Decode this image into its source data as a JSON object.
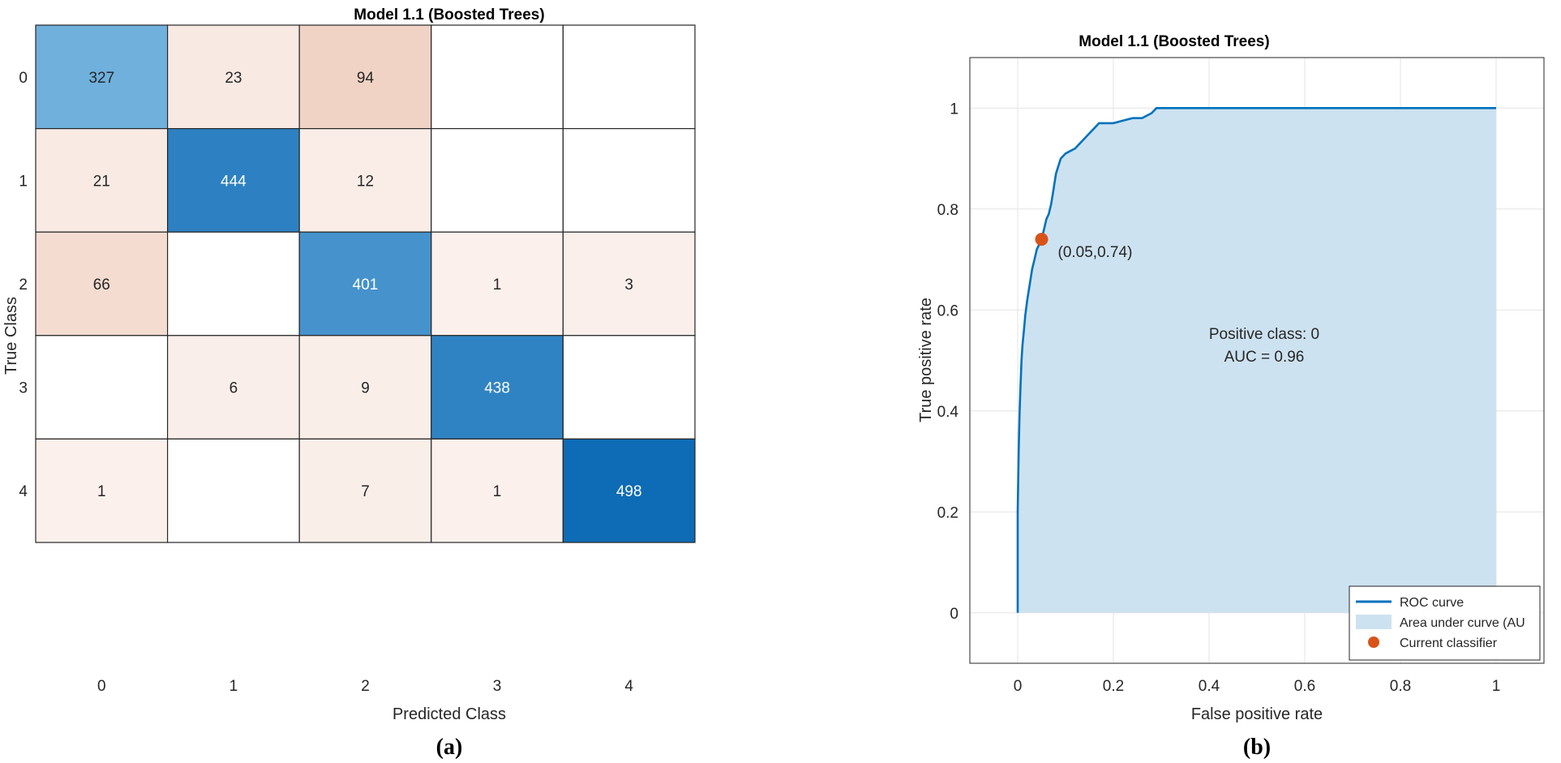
{
  "chart_data": [
    {
      "type": "heatmap",
      "title": "Model 1.1 (Boosted Trees)",
      "xlabel": "Predicted Class",
      "ylabel": "True Class",
      "x_categories": [
        "0",
        "1",
        "2",
        "3",
        "4"
      ],
      "y_categories": [
        "0",
        "1",
        "2",
        "3",
        "4"
      ],
      "matrix": [
        [
          327,
          23,
          94,
          null,
          null
        ],
        [
          21,
          444,
          12,
          null,
          null
        ],
        [
          66,
          null,
          401,
          1,
          3
        ],
        [
          null,
          6,
          9,
          438,
          null
        ],
        [
          1,
          null,
          7,
          1,
          498
        ]
      ],
      "colors": {
        "diagonal_max": "#0e6bb5",
        "diagonal_min": "#6fb0dd",
        "offdiag_min": "#fbf0ec",
        "offdiag_max": "#f1d3c5",
        "empty": "#ffffff",
        "text_dark": "#262626",
        "text_light": "#ffffff"
      },
      "panel_label": "(a)"
    },
    {
      "type": "line",
      "title": "Model 1.1 (Boosted Trees)",
      "xlabel": "False positive rate",
      "ylabel": "True positive rate",
      "xlim": [
        -0.1,
        1.1
      ],
      "ylim": [
        -0.1,
        1.1
      ],
      "xticks": [
        0,
        0.2,
        0.4,
        0.6,
        0.8,
        1
      ],
      "xtick_labels": [
        "0",
        "0.2",
        "0.4",
        "0.6",
        "0.8",
        "1"
      ],
      "yticks": [
        0,
        0.2,
        0.4,
        0.6,
        0.8,
        1
      ],
      "ytick_labels": [
        "0",
        "0.2",
        "0.4",
        "0.6",
        "0.8",
        "1"
      ],
      "grid": true,
      "series": [
        {
          "name": "ROC curve",
          "x": [
            0,
            0,
            0.002,
            0.004,
            0.006,
            0.008,
            0.01,
            0.013,
            0.016,
            0.02,
            0.025,
            0.03,
            0.035,
            0.04,
            0.045,
            0.05,
            0.055,
            0.06,
            0.065,
            0.07,
            0.075,
            0.08,
            0.09,
            0.1,
            0.11,
            0.12,
            0.13,
            0.14,
            0.15,
            0.16,
            0.17,
            0.18,
            0.2,
            0.22,
            0.24,
            0.26,
            0.28,
            0.29,
            0.3,
            1
          ],
          "y": [
            0,
            0.2,
            0.32,
            0.4,
            0.45,
            0.5,
            0.53,
            0.56,
            0.59,
            0.62,
            0.65,
            0.68,
            0.7,
            0.72,
            0.73,
            0.74,
            0.76,
            0.78,
            0.79,
            0.81,
            0.84,
            0.87,
            0.9,
            0.91,
            0.915,
            0.92,
            0.93,
            0.94,
            0.95,
            0.96,
            0.97,
            0.97,
            0.97,
            0.975,
            0.98,
            0.98,
            0.99,
            1,
            1,
            1
          ],
          "color": "#0072bd"
        }
      ],
      "area_color": "#cde2f0",
      "current_classifier": {
        "x": 0.05,
        "y": 0.74,
        "label": "(0.05,0.74)",
        "color": "#d95319"
      },
      "annotation_lines": [
        "Positive class: 0",
        "AUC = 0.96"
      ],
      "legend": {
        "position": "bottom-right",
        "entries": [
          "ROC curve",
          "Area under curve (AU",
          "Current classifier"
        ]
      },
      "panel_label": "(b)"
    }
  ]
}
